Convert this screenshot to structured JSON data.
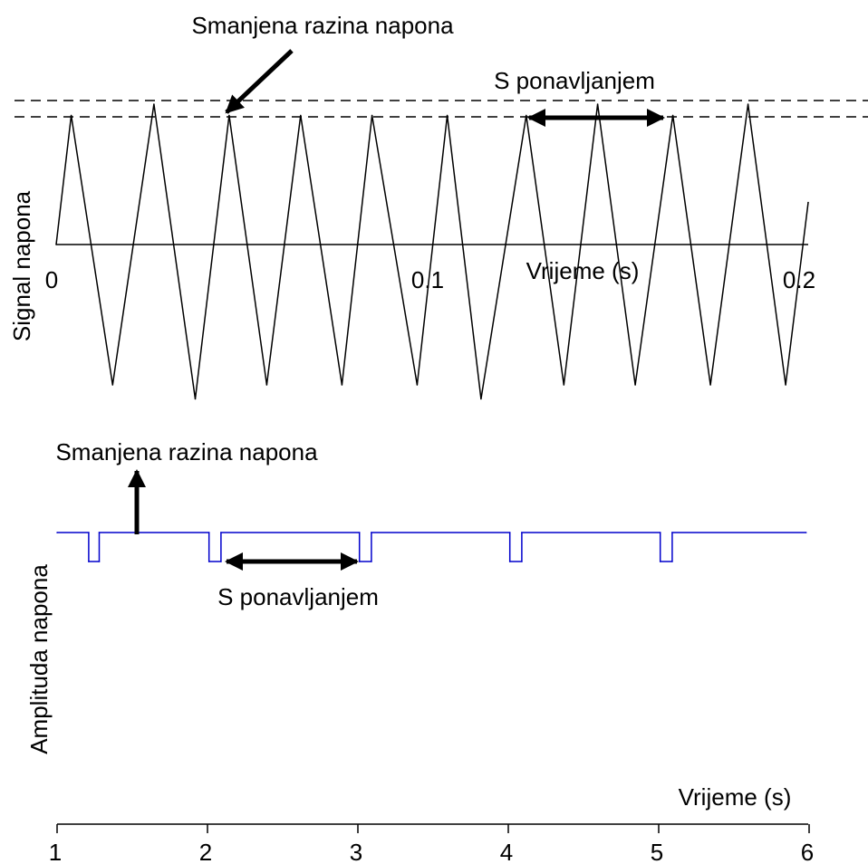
{
  "chart_data": [
    {
      "type": "line",
      "xlabel": "Vrijeme (s)",
      "ylabel": "Signal napona",
      "xlim": [
        0,
        0.2
      ],
      "x_ticks": [
        "0",
        "0.1",
        "0.2"
      ],
      "series": [
        {
          "x": [
            0,
            0.004,
            0.015,
            0.026,
            0.037,
            0.046,
            0.056,
            0.065,
            0.076,
            0.084,
            0.096,
            0.104,
            0.113,
            0.125,
            0.135,
            0.144,
            0.154,
            0.164,
            0.174,
            0.184,
            0.194,
            0.2
          ],
          "y": [
            0,
            0.92,
            -1.0,
            1.0,
            -1.1,
            0.92,
            -1.0,
            0.92,
            -1.0,
            0.92,
            -1.0,
            0.92,
            -1.1,
            0.92,
            -1.0,
            1.0,
            -1.0,
            0.92,
            -1.0,
            1.0,
            -1.0,
            0.3
          ]
        }
      ],
      "reference_levels": [
        1.0,
        0.92
      ],
      "annotations": [
        {
          "text": "Smanjena razina napona"
        },
        {
          "text": "S ponavljanjem"
        }
      ]
    },
    {
      "type": "line",
      "xlabel": "Vrijeme (s)",
      "ylabel": "Amplituda napona",
      "xlim": [
        1,
        6
      ],
      "x_ticks": [
        "1",
        "2",
        "3",
        "4",
        "5",
        "6"
      ],
      "series": [
        {
          "color": "#0000cc",
          "x": [
            1.0,
            1.21,
            1.21,
            1.28,
            1.28,
            2.01,
            2.01,
            2.09,
            2.09,
            3.01,
            3.01,
            3.09,
            3.09,
            4.01,
            4.01,
            4.09,
            4.09,
            5.01,
            5.01,
            5.09,
            5.09,
            5.98
          ],
          "y": [
            1,
            1,
            0,
            0,
            1,
            1,
            0,
            0,
            1,
            1,
            0,
            0,
            1,
            1,
            0,
            0,
            1,
            1,
            0,
            0,
            1,
            1
          ]
        }
      ],
      "annotations": [
        {
          "text": "Smanjena razina napona"
        },
        {
          "text": "S ponavljanjem"
        }
      ]
    }
  ]
}
